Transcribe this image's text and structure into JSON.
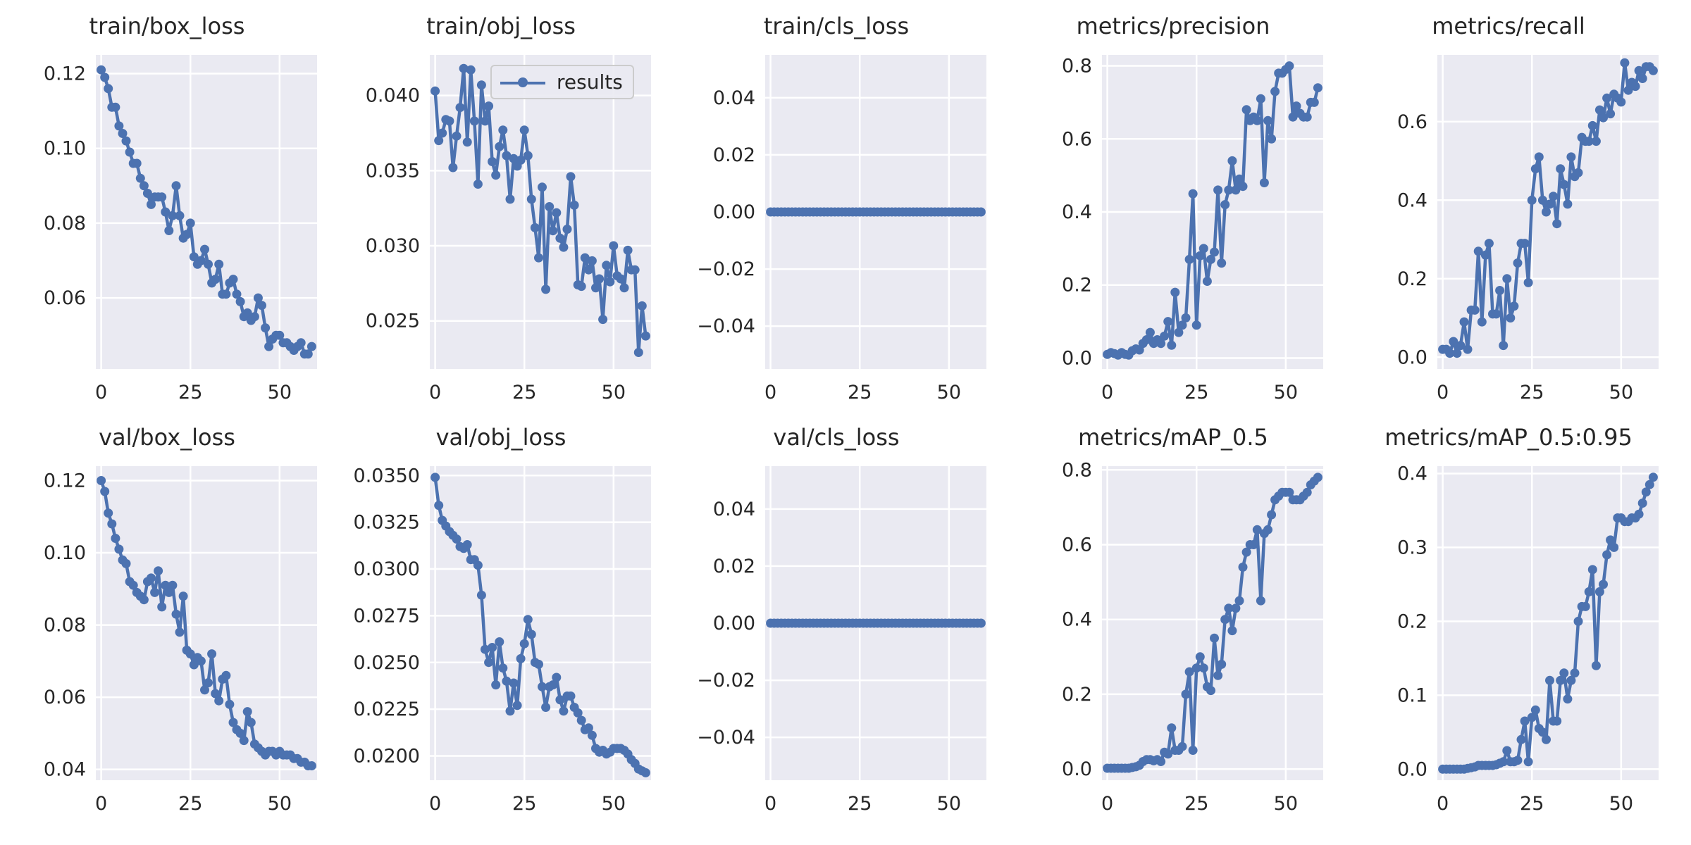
{
  "chart_data": [
    {
      "title": "train/box_loss",
      "ylim": [
        0.041,
        0.125
      ],
      "yticks": [
        0.06,
        0.08,
        0.1,
        0.12
      ],
      "ytick_labels": [
        "0.06",
        "0.08",
        "0.10",
        "0.12"
      ],
      "y": [
        0.121,
        0.119,
        0.116,
        0.111,
        0.111,
        0.106,
        0.104,
        0.102,
        0.099,
        0.096,
        0.096,
        0.092,
        0.09,
        0.088,
        0.085,
        0.087,
        0.087,
        0.087,
        0.083,
        0.078,
        0.082,
        0.09,
        0.082,
        0.076,
        0.077,
        0.08,
        0.071,
        0.069,
        0.07,
        0.073,
        0.069,
        0.064,
        0.065,
        0.069,
        0.061,
        0.061,
        0.064,
        0.065,
        0.061,
        0.059,
        0.055,
        0.056,
        0.054,
        0.055,
        0.06,
        0.058,
        0.052,
        0.047,
        0.049,
        0.05,
        0.05,
        0.048,
        0.048,
        0.047,
        0.046,
        0.047,
        0.048,
        0.045,
        0.045,
        0.047
      ]
    },
    {
      "title": "train/obj_loss",
      "ylim": [
        0.0218,
        0.0427
      ],
      "yticks": [
        0.025,
        0.03,
        0.035,
        0.04
      ],
      "ytick_labels": [
        "0.025",
        "0.030",
        "0.035",
        "0.040"
      ],
      "legend": "results",
      "y": [
        0.0403,
        0.037,
        0.0375,
        0.0384,
        0.0383,
        0.0352,
        0.0373,
        0.0392,
        0.0418,
        0.0369,
        0.0417,
        0.0383,
        0.0341,
        0.0407,
        0.0383,
        0.0393,
        0.0356,
        0.0347,
        0.0366,
        0.0377,
        0.036,
        0.0331,
        0.0358,
        0.0353,
        0.0357,
        0.0377,
        0.036,
        0.0331,
        0.0312,
        0.0292,
        0.0339,
        0.0271,
        0.0326,
        0.031,
        0.0322,
        0.0305,
        0.0299,
        0.0311,
        0.0346,
        0.0327,
        0.0274,
        0.0273,
        0.0292,
        0.0284,
        0.029,
        0.0272,
        0.0278,
        0.0251,
        0.0287,
        0.0276,
        0.03,
        0.028,
        0.0278,
        0.0272,
        0.0297,
        0.0284,
        0.0284,
        0.0229,
        0.026,
        0.024
      ]
    },
    {
      "title": "train/cls_loss",
      "ylim": [
        -0.055,
        0.055
      ],
      "yticks": [
        -0.04,
        -0.02,
        0.0,
        0.02,
        0.04
      ],
      "ytick_labels": [
        "−0.04",
        "−0.02",
        "0.00",
        "0.02",
        "0.04"
      ],
      "y": [
        0,
        0,
        0,
        0,
        0,
        0,
        0,
        0,
        0,
        0,
        0,
        0,
        0,
        0,
        0,
        0,
        0,
        0,
        0,
        0,
        0,
        0,
        0,
        0,
        0,
        0,
        0,
        0,
        0,
        0,
        0,
        0,
        0,
        0,
        0,
        0,
        0,
        0,
        0,
        0,
        0,
        0,
        0,
        0,
        0,
        0,
        0,
        0,
        0,
        0,
        0,
        0,
        0,
        0,
        0,
        0,
        0,
        0,
        0,
        0
      ]
    },
    {
      "title": "metrics/precision",
      "ylim": [
        -0.03,
        0.83
      ],
      "yticks": [
        0.0,
        0.2,
        0.4,
        0.6,
        0.8
      ],
      "ytick_labels": [
        "0.0",
        "0.2",
        "0.4",
        "0.6",
        "0.8"
      ],
      "y": [
        0.01,
        0.015,
        0.012,
        0.008,
        0.015,
        0.01,
        0.008,
        0.02,
        0.025,
        0.022,
        0.04,
        0.05,
        0.07,
        0.04,
        0.05,
        0.04,
        0.06,
        0.1,
        0.035,
        0.18,
        0.07,
        0.09,
        0.11,
        0.27,
        0.45,
        0.09,
        0.28,
        0.3,
        0.21,
        0.27,
        0.29,
        0.46,
        0.26,
        0.42,
        0.46,
        0.54,
        0.46,
        0.49,
        0.47,
        0.68,
        0.65,
        0.66,
        0.65,
        0.71,
        0.48,
        0.65,
        0.6,
        0.73,
        0.78,
        0.78,
        0.79,
        0.8,
        0.66,
        0.69,
        0.67,
        0.66,
        0.66,
        0.7,
        0.7,
        0.74
      ]
    },
    {
      "title": "metrics/recall",
      "ylim": [
        -0.03,
        0.77
      ],
      "yticks": [
        0.0,
        0.2,
        0.4,
        0.6
      ],
      "ytick_labels": [
        "0.0",
        "0.2",
        "0.4",
        "0.6"
      ],
      "y": [
        0.02,
        0.02,
        0.01,
        0.04,
        0.01,
        0.03,
        0.09,
        0.02,
        0.12,
        0.12,
        0.27,
        0.09,
        0.26,
        0.29,
        0.11,
        0.11,
        0.17,
        0.03,
        0.2,
        0.1,
        0.13,
        0.24,
        0.29,
        0.29,
        0.19,
        0.4,
        0.48,
        0.51,
        0.4,
        0.37,
        0.39,
        0.41,
        0.34,
        0.48,
        0.44,
        0.39,
        0.51,
        0.46,
        0.47,
        0.56,
        0.55,
        0.55,
        0.59,
        0.55,
        0.63,
        0.61,
        0.66,
        0.62,
        0.67,
        0.66,
        0.65,
        0.75,
        0.68,
        0.7,
        0.69,
        0.73,
        0.71,
        0.74,
        0.74,
        0.73
      ]
    },
    {
      "title": "val/box_loss",
      "ylim": [
        0.037,
        0.124
      ],
      "yticks": [
        0.04,
        0.06,
        0.08,
        0.1,
        0.12
      ],
      "ytick_labels": [
        "0.04",
        "0.06",
        "0.08",
        "0.10",
        "0.12"
      ],
      "y": [
        0.12,
        0.117,
        0.111,
        0.108,
        0.104,
        0.101,
        0.098,
        0.097,
        0.092,
        0.091,
        0.089,
        0.088,
        0.087,
        0.092,
        0.093,
        0.089,
        0.095,
        0.085,
        0.091,
        0.089,
        0.091,
        0.083,
        0.078,
        0.088,
        0.073,
        0.072,
        0.069,
        0.071,
        0.07,
        0.062,
        0.064,
        0.072,
        0.061,
        0.059,
        0.065,
        0.066,
        0.058,
        0.053,
        0.051,
        0.05,
        0.048,
        0.056,
        0.053,
        0.047,
        0.046,
        0.045,
        0.044,
        0.045,
        0.045,
        0.044,
        0.045,
        0.044,
        0.044,
        0.044,
        0.043,
        0.043,
        0.042,
        0.042,
        0.041,
        0.041
      ]
    },
    {
      "title": "val/obj_loss",
      "ylim": [
        0.0187,
        0.0355
      ],
      "yticks": [
        0.02,
        0.0225,
        0.025,
        0.0275,
        0.03,
        0.0325,
        0.035
      ],
      "ytick_labels": [
        "0.0200",
        "0.0225",
        "0.0250",
        "0.0275",
        "0.0300",
        "0.0325",
        "0.0350"
      ],
      "y": [
        0.0349,
        0.0334,
        0.0326,
        0.0323,
        0.032,
        0.0318,
        0.0316,
        0.0312,
        0.0311,
        0.0313,
        0.0305,
        0.0305,
        0.0302,
        0.0286,
        0.0257,
        0.025,
        0.0258,
        0.0238,
        0.0261,
        0.0247,
        0.024,
        0.0224,
        0.0239,
        0.0227,
        0.0252,
        0.026,
        0.0273,
        0.0265,
        0.025,
        0.0249,
        0.0237,
        0.0226,
        0.0237,
        0.0238,
        0.0242,
        0.023,
        0.0224,
        0.0232,
        0.0232,
        0.0226,
        0.0223,
        0.0219,
        0.0214,
        0.0215,
        0.0211,
        0.0204,
        0.0202,
        0.0203,
        0.0201,
        0.0202,
        0.0204,
        0.0204,
        0.0204,
        0.0203,
        0.0201,
        0.0198,
        0.0196,
        0.0193,
        0.0192,
        0.0191
      ]
    },
    {
      "title": "val/cls_loss",
      "ylim": [
        -0.055,
        0.055
      ],
      "yticks": [
        -0.04,
        -0.02,
        0.0,
        0.02,
        0.04
      ],
      "ytick_labels": [
        "−0.04",
        "−0.02",
        "0.00",
        "0.02",
        "0.04"
      ],
      "y": [
        0,
        0,
        0,
        0,
        0,
        0,
        0,
        0,
        0,
        0,
        0,
        0,
        0,
        0,
        0,
        0,
        0,
        0,
        0,
        0,
        0,
        0,
        0,
        0,
        0,
        0,
        0,
        0,
        0,
        0,
        0,
        0,
        0,
        0,
        0,
        0,
        0,
        0,
        0,
        0,
        0,
        0,
        0,
        0,
        0,
        0,
        0,
        0,
        0,
        0,
        0,
        0,
        0,
        0,
        0,
        0,
        0,
        0,
        0,
        0
      ]
    },
    {
      "title": "metrics/mAP_0.5",
      "ylim": [
        -0.03,
        0.81
      ],
      "yticks": [
        0.0,
        0.2,
        0.4,
        0.6,
        0.8
      ],
      "ytick_labels": [
        "0.0",
        "0.2",
        "0.4",
        "0.6",
        "0.8"
      ],
      "y": [
        0.002,
        0.002,
        0.002,
        0.002,
        0.002,
        0.002,
        0.002,
        0.004,
        0.006,
        0.01,
        0.02,
        0.025,
        0.025,
        0.022,
        0.025,
        0.02,
        0.045,
        0.04,
        0.11,
        0.05,
        0.05,
        0.06,
        0.2,
        0.26,
        0.05,
        0.27,
        0.3,
        0.27,
        0.22,
        0.21,
        0.35,
        0.25,
        0.28,
        0.4,
        0.43,
        0.37,
        0.43,
        0.45,
        0.54,
        0.58,
        0.6,
        0.6,
        0.64,
        0.45,
        0.63,
        0.64,
        0.68,
        0.72,
        0.73,
        0.74,
        0.74,
        0.74,
        0.72,
        0.72,
        0.72,
        0.73,
        0.74,
        0.76,
        0.77,
        0.78
      ]
    },
    {
      "title": "metrics/mAP_0.5:0.95",
      "ylim": [
        -0.015,
        0.41
      ],
      "yticks": [
        0.0,
        0.1,
        0.2,
        0.3,
        0.4
      ],
      "ytick_labels": [
        "0.0",
        "0.1",
        "0.2",
        "0.3",
        "0.4"
      ],
      "y": [
        0.0,
        0.0,
        0.0,
        0.0,
        0.0,
        0.0,
        0.0,
        0.001,
        0.002,
        0.003,
        0.005,
        0.005,
        0.005,
        0.005,
        0.005,
        0.006,
        0.008,
        0.01,
        0.025,
        0.01,
        0.01,
        0.012,
        0.04,
        0.065,
        0.01,
        0.07,
        0.08,
        0.055,
        0.05,
        0.04,
        0.12,
        0.065,
        0.065,
        0.12,
        0.13,
        0.095,
        0.12,
        0.13,
        0.2,
        0.22,
        0.22,
        0.24,
        0.27,
        0.14,
        0.24,
        0.25,
        0.29,
        0.31,
        0.3,
        0.34,
        0.34,
        0.335,
        0.335,
        0.34,
        0.34,
        0.345,
        0.36,
        0.375,
        0.385,
        0.395
      ]
    }
  ],
  "x_axis": {
    "xlim": [
      -1.5,
      60.5
    ],
    "xticks": [
      0,
      25,
      50
    ],
    "xtick_labels": [
      "0",
      "25",
      "50"
    ]
  },
  "colors": {
    "line": "#4c72b0",
    "plot_bg": "#eaeaf2",
    "grid": "#ffffff",
    "text": "#262626"
  }
}
